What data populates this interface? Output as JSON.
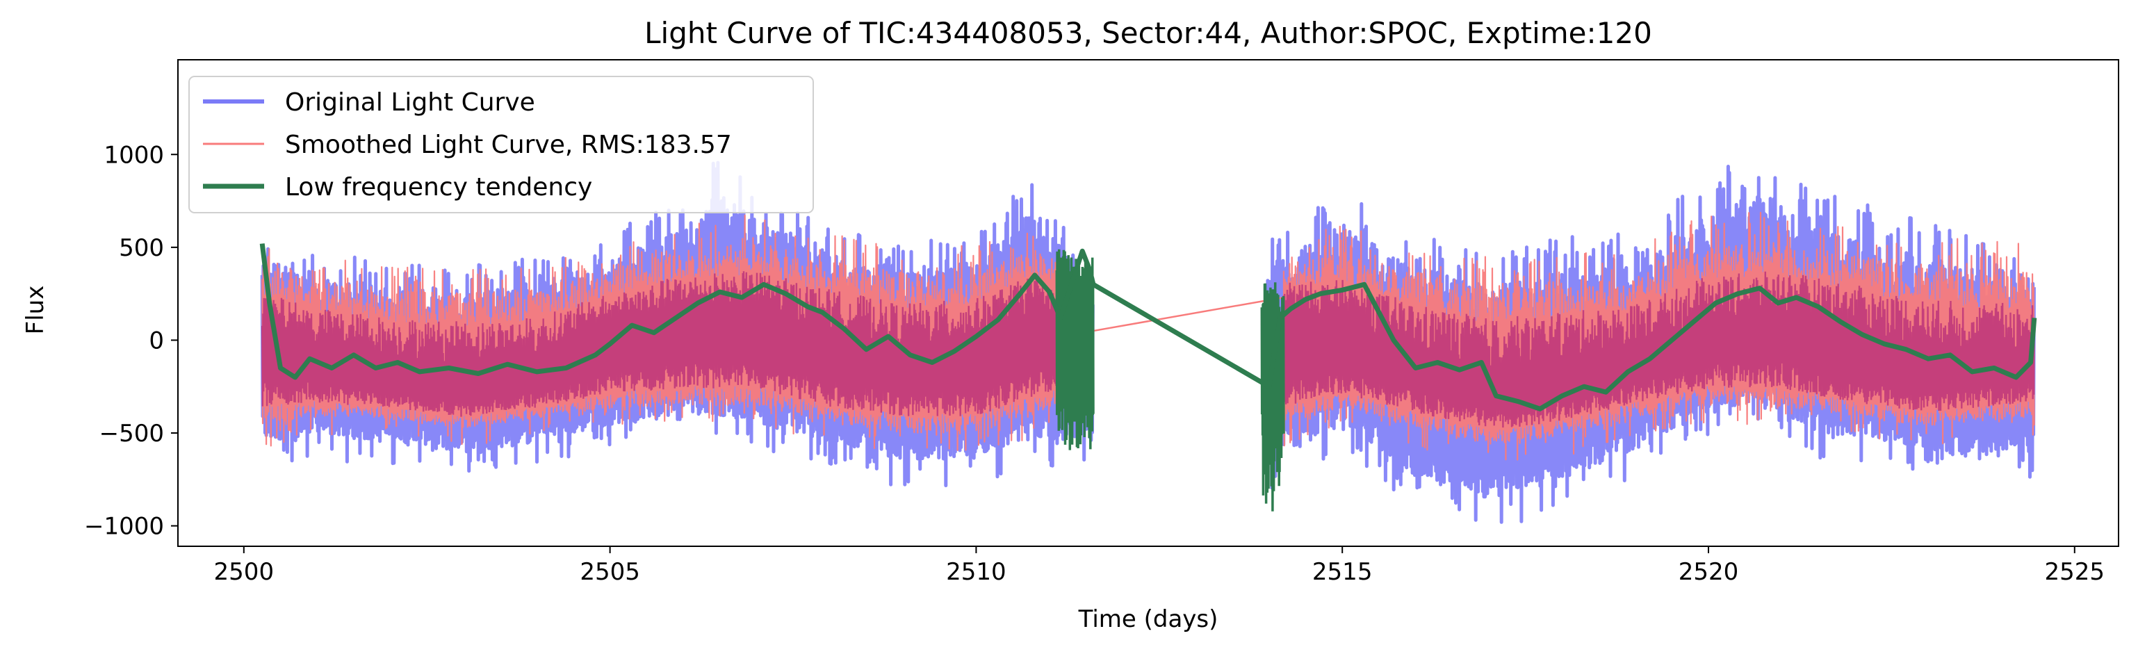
{
  "chart_data": {
    "type": "line",
    "title": "Light Curve of TIC:434408053, Sector:44, Author:SPOC, Exptime:120",
    "xlabel": "Time (days)",
    "ylabel": "Flux",
    "xlim": [
      2499.1,
      2525.6
    ],
    "ylim": [
      -1110,
      1510
    ],
    "xticks": [
      2500,
      2505,
      2510,
      2515,
      2520,
      2525
    ],
    "yticks": [
      -1000,
      -500,
      0,
      500,
      1000
    ],
    "xtick_labels": [
      "2500",
      "2505",
      "2510",
      "2515",
      "2520",
      "2525"
    ],
    "ytick_labels": [
      "−1000",
      "−500",
      "0",
      "500",
      "1000"
    ],
    "grid": false,
    "legend_position": "top-left",
    "series": [
      {
        "name": "Original Light Curve",
        "color": "#7b7bf7",
        "segments": [
          [
            2500.25,
            2511.6
          ],
          [
            2513.95,
            2524.45
          ]
        ],
        "bands": [
          [
            2500.3,
            200,
            500,
            -300,
            -600
          ],
          [
            2501.0,
            0,
            400,
            -300,
            -550
          ],
          [
            2502.0,
            -50,
            380,
            -350,
            -600
          ],
          [
            2503.0,
            -80,
            350,
            -400,
            -650
          ],
          [
            2504.0,
            -50,
            400,
            -350,
            -600
          ],
          [
            2505.0,
            100,
            500,
            -250,
            -500
          ],
          [
            2506.0,
            250,
            700,
            -150,
            -450
          ],
          [
            2506.5,
            300,
            900,
            -200,
            -450
          ],
          [
            2507.0,
            250,
            750,
            -200,
            -500
          ],
          [
            2508.0,
            100,
            550,
            -300,
            -600
          ],
          [
            2509.0,
            0,
            450,
            -400,
            -700
          ],
          [
            2510.0,
            100,
            500,
            -350,
            -700
          ],
          [
            2510.8,
            300,
            800,
            -200,
            -600
          ],
          [
            2511.5,
            100,
            350,
            -300,
            -600
          ],
          [
            2514.0,
            0,
            500,
            -350,
            -750
          ],
          [
            2515.0,
            250,
            700,
            -150,
            -500
          ],
          [
            2516.0,
            -50,
            500,
            -450,
            -800
          ],
          [
            2517.0,
            -200,
            400,
            -550,
            -900
          ],
          [
            2518.0,
            -150,
            500,
            -500,
            -800
          ],
          [
            2519.0,
            0,
            500,
            -300,
            -650
          ],
          [
            2520.0,
            200,
            800,
            -100,
            -450
          ],
          [
            2520.8,
            300,
            900,
            -100,
            -400
          ],
          [
            2521.5,
            150,
            700,
            -250,
            -550
          ],
          [
            2522.5,
            0,
            600,
            -300,
            -600
          ],
          [
            2523.5,
            -50,
            500,
            -350,
            -700
          ],
          [
            2524.4,
            0,
            450,
            -300,
            -650
          ]
        ]
      },
      {
        "name": "Smoothed Light Curve, RMS:183.57",
        "color": "#f87b7b",
        "segments": [
          [
            2500.25,
            2511.6
          ],
          [
            2511.6,
            2514.2
          ],
          [
            2514.2,
            2524.45
          ]
        ],
        "bands": [
          [
            2500.3,
            100,
            450,
            -250,
            -500
          ],
          [
            2501.0,
            0,
            400,
            -250,
            -450
          ],
          [
            2502.0,
            -50,
            350,
            -300,
            -450
          ],
          [
            2503.0,
            -80,
            330,
            -350,
            -500
          ],
          [
            2504.0,
            -50,
            350,
            -300,
            -450
          ],
          [
            2505.0,
            100,
            450,
            -200,
            -400
          ],
          [
            2506.0,
            200,
            550,
            -150,
            -400
          ],
          [
            2507.0,
            200,
            600,
            -150,
            -400
          ],
          [
            2508.0,
            100,
            500,
            -250,
            -500
          ],
          [
            2509.0,
            0,
            450,
            -300,
            -550
          ],
          [
            2510.0,
            50,
            450,
            -300,
            -550
          ],
          [
            2510.8,
            200,
            550,
            -200,
            -450
          ],
          [
            2511.5,
            50,
            250,
            -150,
            -300
          ],
          [
            2514.2,
            200,
            450,
            -250,
            -500
          ],
          [
            2515.0,
            150,
            550,
            -200,
            -400
          ],
          [
            2516.0,
            0,
            450,
            -300,
            -500
          ],
          [
            2517.0,
            -100,
            400,
            -400,
            -600
          ],
          [
            2518.0,
            -50,
            400,
            -350,
            -550
          ],
          [
            2519.0,
            0,
            450,
            -250,
            -450
          ],
          [
            2520.0,
            150,
            600,
            -150,
            -400
          ],
          [
            2521.0,
            200,
            600,
            -150,
            -400
          ],
          [
            2522.0,
            100,
            550,
            -250,
            -450
          ],
          [
            2523.0,
            0,
            500,
            -300,
            -500
          ],
          [
            2524.4,
            0,
            450,
            -250,
            -450
          ]
        ],
        "bridge": [
          [
            2511.6,
            50
          ],
          [
            2514.2,
            230
          ]
        ]
      },
      {
        "name": "Low frequency tendency",
        "color": "#2e7d4f",
        "points": [
          [
            2500.25,
            520
          ],
          [
            2500.35,
            200
          ],
          [
            2500.5,
            -150
          ],
          [
            2500.7,
            -200
          ],
          [
            2500.9,
            -100
          ],
          [
            2501.2,
            -150
          ],
          [
            2501.5,
            -80
          ],
          [
            2501.8,
            -150
          ],
          [
            2502.1,
            -120
          ],
          [
            2502.4,
            -170
          ],
          [
            2502.8,
            -150
          ],
          [
            2503.2,
            -180
          ],
          [
            2503.6,
            -130
          ],
          [
            2504.0,
            -170
          ],
          [
            2504.4,
            -150
          ],
          [
            2504.8,
            -80
          ],
          [
            2505.0,
            -20
          ],
          [
            2505.3,
            80
          ],
          [
            2505.6,
            40
          ],
          [
            2505.9,
            120
          ],
          [
            2506.2,
            200
          ],
          [
            2506.5,
            260
          ],
          [
            2506.8,
            230
          ],
          [
            2507.1,
            300
          ],
          [
            2507.4,
            250
          ],
          [
            2507.7,
            180
          ],
          [
            2507.9,
            150
          ],
          [
            2508.2,
            60
          ],
          [
            2508.5,
            -50
          ],
          [
            2508.8,
            20
          ],
          [
            2509.1,
            -80
          ],
          [
            2509.4,
            -120
          ],
          [
            2509.7,
            -60
          ],
          [
            2510.0,
            20
          ],
          [
            2510.3,
            110
          ],
          [
            2510.6,
            250
          ],
          [
            2510.8,
            350
          ],
          [
            2511.0,
            260
          ],
          [
            2511.15,
            120
          ],
          [
            2511.3,
            300
          ],
          [
            2511.45,
            480
          ],
          [
            2511.55,
            380
          ],
          [
            2511.6,
            300
          ],
          [
            2514.0,
            -250
          ],
          [
            2514.15,
            120
          ],
          [
            2514.3,
            170
          ],
          [
            2514.5,
            220
          ],
          [
            2514.7,
            250
          ],
          [
            2515.0,
            270
          ],
          [
            2515.3,
            300
          ],
          [
            2515.5,
            150
          ],
          [
            2515.7,
            0
          ],
          [
            2516.0,
            -150
          ],
          [
            2516.3,
            -120
          ],
          [
            2516.6,
            -160
          ],
          [
            2516.9,
            -120
          ],
          [
            2517.1,
            -300
          ],
          [
            2517.4,
            -330
          ],
          [
            2517.7,
            -370
          ],
          [
            2518.0,
            -300
          ],
          [
            2518.3,
            -250
          ],
          [
            2518.6,
            -280
          ],
          [
            2518.9,
            -170
          ],
          [
            2519.2,
            -100
          ],
          [
            2519.5,
            0
          ],
          [
            2519.8,
            100
          ],
          [
            2520.1,
            200
          ],
          [
            2520.4,
            250
          ],
          [
            2520.7,
            280
          ],
          [
            2520.95,
            200
          ],
          [
            2521.2,
            230
          ],
          [
            2521.5,
            180
          ],
          [
            2521.8,
            100
          ],
          [
            2522.1,
            30
          ],
          [
            2522.4,
            -20
          ],
          [
            2522.7,
            -50
          ],
          [
            2523.0,
            -100
          ],
          [
            2523.3,
            -80
          ],
          [
            2523.6,
            -170
          ],
          [
            2523.9,
            -150
          ],
          [
            2524.2,
            -200
          ],
          [
            2524.4,
            -120
          ],
          [
            2524.45,
            120
          ]
        ],
        "noisy_clusters": [
          [
            2511.1,
            2511.6,
            -600,
            500
          ],
          [
            2513.9,
            2514.2,
            -930,
            320
          ]
        ]
      }
    ]
  }
}
